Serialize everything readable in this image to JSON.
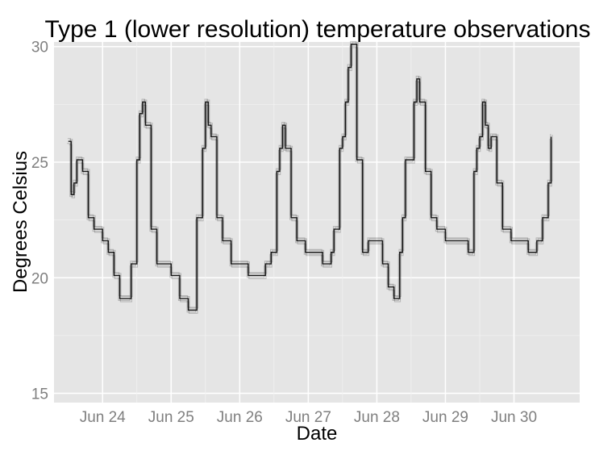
{
  "chart_data": {
    "type": "line",
    "title": "Type 1 (lower resolution) temperature observations",
    "xlabel": "Date",
    "ylabel": "Degrees Celsius",
    "x_ticks": [
      "Jun 24",
      "Jun 25",
      "Jun 26",
      "Jun 27",
      "Jun 28",
      "Jun 29",
      "Jun 30"
    ],
    "x_tick_dates": [
      "2013-06-24",
      "2013-06-25",
      "2013-06-26",
      "2013-06-27",
      "2013-06-28",
      "2013-06-29",
      "2013-06-30"
    ],
    "y_ticks": [
      15,
      20,
      25,
      30
    ],
    "xlim": [
      "2013-06-23 07:00",
      "2013-06-30 23:00"
    ],
    "ylim": [
      14.6,
      30.2
    ],
    "grid": true,
    "background": "#e5e5e5",
    "grid_color": "#ffffff",
    "line_color": "#000000",
    "series": [
      {
        "x": [
          "2013-06-23 12:00",
          "2013-06-23 13:00",
          "2013-06-23 14:00",
          "2013-06-23 15:00",
          "2013-06-23 17:00",
          "2013-06-23 19:00",
          "2013-06-23 21:00",
          "2013-06-24 00:00",
          "2013-06-24 02:00",
          "2013-06-24 04:00",
          "2013-06-24 06:00",
          "2013-06-24 08:00",
          "2013-06-24 10:00",
          "2013-06-24 12:00",
          "2013-06-24 13:00",
          "2013-06-24 14:00",
          "2013-06-24 15:00",
          "2013-06-24 17:00",
          "2013-06-24 19:00",
          "2013-06-24 21:00",
          "2013-06-25 00:00",
          "2013-06-25 03:00",
          "2013-06-25 06:00",
          "2013-06-25 09:00",
          "2013-06-25 11:00",
          "2013-06-25 12:00",
          "2013-06-25 13:00",
          "2013-06-25 14:00",
          "2013-06-25 16:00",
          "2013-06-25 18:00",
          "2013-06-25 21:00",
          "2013-06-26 00:00",
          "2013-06-26 03:00",
          "2013-06-26 06:00",
          "2013-06-26 09:00",
          "2013-06-26 11:00",
          "2013-06-26 13:00",
          "2013-06-26 14:00",
          "2013-06-26 15:00",
          "2013-06-26 16:00",
          "2013-06-26 18:00",
          "2013-06-26 20:00",
          "2013-06-26 23:00",
          "2013-06-27 02:00",
          "2013-06-27 05:00",
          "2013-06-27 08:00",
          "2013-06-27 09:00",
          "2013-06-27 11:00",
          "2013-06-27 12:00",
          "2013-06-27 13:00",
          "2013-06-27 14:00",
          "2013-06-27 15:00",
          "2013-06-27 17:00",
          "2013-06-27 19:00",
          "2013-06-27 21:00",
          "2013-06-28 00:00",
          "2013-06-28 02:00",
          "2013-06-28 04:00",
          "2013-06-28 06:00",
          "2013-06-28 08:00",
          "2013-06-28 09:00",
          "2013-06-28 10:00",
          "2013-06-28 12:00",
          "2013-06-28 13:00",
          "2013-06-28 14:00",
          "2013-06-28 15:00",
          "2013-06-28 17:00",
          "2013-06-28 19:00",
          "2013-06-28 21:00",
          "2013-06-29 00:00",
          "2013-06-29 03:00",
          "2013-06-29 06:00",
          "2013-06-29 08:00",
          "2013-06-29 10:00",
          "2013-06-29 11:00",
          "2013-06-29 12:00",
          "2013-06-29 13:00",
          "2013-06-29 14:00",
          "2013-06-29 15:00",
          "2013-06-29 16:00",
          "2013-06-29 18:00",
          "2013-06-29 20:00",
          "2013-06-29 23:00",
          "2013-06-30 02:00",
          "2013-06-30 05:00",
          "2013-06-30 08:00",
          "2013-06-30 10:00",
          "2013-06-30 12:00",
          "2013-06-30 13:00"
        ],
        "values": [
          25.9,
          23.6,
          24.1,
          25.1,
          24.6,
          22.6,
          22.1,
          21.6,
          21.1,
          20.1,
          19.1,
          19.1,
          20.6,
          25.1,
          27.1,
          27.6,
          26.6,
          22.1,
          20.6,
          20.6,
          20.1,
          19.1,
          18.6,
          22.6,
          25.6,
          27.6,
          26.6,
          26.1,
          22.6,
          21.6,
          20.6,
          20.6,
          20.1,
          20.1,
          20.6,
          21.1,
          24.6,
          25.6,
          26.6,
          25.6,
          22.6,
          21.6,
          21.1,
          21.1,
          20.6,
          21.1,
          22.1,
          25.6,
          26.1,
          27.6,
          29.1,
          30.1,
          25.1,
          21.1,
          21.6,
          21.6,
          20.6,
          19.6,
          19.1,
          21.1,
          22.6,
          25.1,
          25.1,
          27.6,
          28.6,
          27.6,
          24.6,
          22.6,
          22.1,
          21.6,
          21.6,
          21.6,
          21.1,
          24.6,
          25.6,
          26.1,
          27.6,
          26.6,
          25.6,
          26.1,
          24.1,
          22.1,
          21.6,
          21.6,
          21.1,
          21.6,
          22.6,
          24.1,
          26.1
        ]
      }
    ]
  }
}
